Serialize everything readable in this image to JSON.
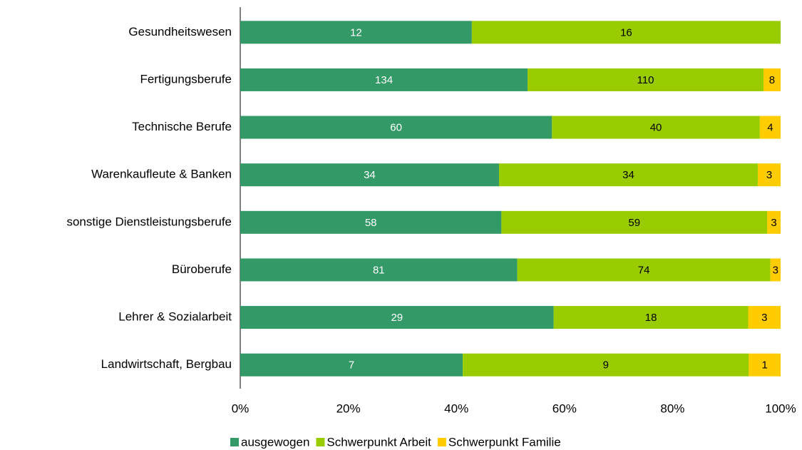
{
  "chart_data": {
    "type": "bar",
    "orientation": "horizontal",
    "stacked": "percent",
    "categories": [
      "Gesundheitswesen",
      "Fertigungsberufe",
      "Technische Berufe",
      "Warenkaufleute & Banken",
      "sonstige Dienstleistungsberufe",
      "Büroberufe",
      "Lehrer & Sozialarbeit",
      "Landwirtschaft, Bergbau"
    ],
    "series": [
      {
        "name": "ausgewogen",
        "color": "#339966",
        "label_color": "#ffffff",
        "values": [
          12,
          134,
          60,
          34,
          58,
          81,
          29,
          7
        ]
      },
      {
        "name": "Schwerpunkt Arbeit",
        "color": "#99cc00",
        "label_color": "#000000",
        "values": [
          16,
          110,
          40,
          34,
          59,
          74,
          18,
          9
        ]
      },
      {
        "name": "Schwerpunkt Familie",
        "color": "#ffcc00",
        "label_color": "#000000",
        "values": [
          null,
          8,
          4,
          3,
          3,
          3,
          3,
          1
        ]
      }
    ],
    "xlim": [
      0,
      100
    ],
    "xticks": [
      {
        "value": 0,
        "label": "0%"
      },
      {
        "value": 20,
        "label": "20%"
      },
      {
        "value": 40,
        "label": "40%"
      },
      {
        "value": 60,
        "label": "60%"
      },
      {
        "value": 80,
        "label": "80%"
      },
      {
        "value": 100,
        "label": "100%"
      }
    ],
    "grid": false,
    "legend": "bottom"
  }
}
